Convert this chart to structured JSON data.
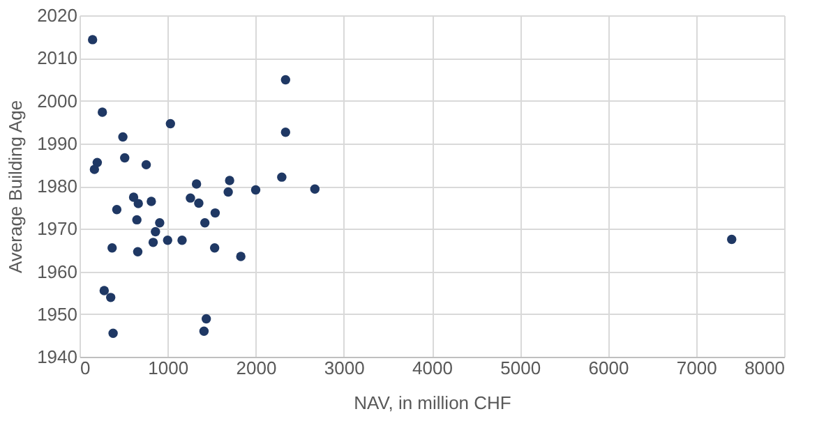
{
  "chart_data": {
    "type": "scatter",
    "xlabel": "NAV, in million CHF",
    "ylabel": "Average Building Age",
    "x": [
      148,
      259,
      1032,
      492,
      513,
      757,
      201,
      169,
      2339,
      2339,
      2296,
      1704,
      1688,
      2000,
      2672,
      1328,
      1259,
      1354,
      614,
      667,
      815,
      423,
      651,
      1540,
      1423,
      910,
      862,
      836,
      1000,
      1164,
      1534,
      370,
      661,
      1831,
      280,
      354,
      1439,
      1413,
      381,
      7404
    ],
    "series": [
      {
        "color": "#1f3864",
        "values": [
          2014.3,
          1997.3,
          1994.6,
          1991.5,
          1986.6,
          1985.0,
          1985.5,
          1983.9,
          2004.9,
          1992.6,
          1982.1,
          1981.3,
          1978.6,
          1979.1,
          1979.3,
          1980.5,
          1977.2,
          1976.0,
          1977.4,
          1975.9,
          1976.4,
          1974.5,
          1972.1,
          1973.7,
          1971.4,
          1971.4,
          1969.3,
          1966.8,
          1967.3,
          1967.3,
          1965.5,
          1965.5,
          1964.6,
          1963.5,
          1955.5,
          1953.9,
          1948.9,
          1946.0,
          1945.5,
          1967.5
        ]
      }
    ],
    "xlim": [
      0,
      8000
    ],
    "xticks": [
      0,
      1000,
      2000,
      3000,
      4000,
      5000,
      6000,
      7000,
      8000
    ],
    "ylim": [
      1940,
      2020
    ],
    "yticks": [
      1940,
      1950,
      1960,
      1970,
      1980,
      1990,
      2000,
      2010,
      2020
    ],
    "grid": true,
    "marker": "circle"
  }
}
